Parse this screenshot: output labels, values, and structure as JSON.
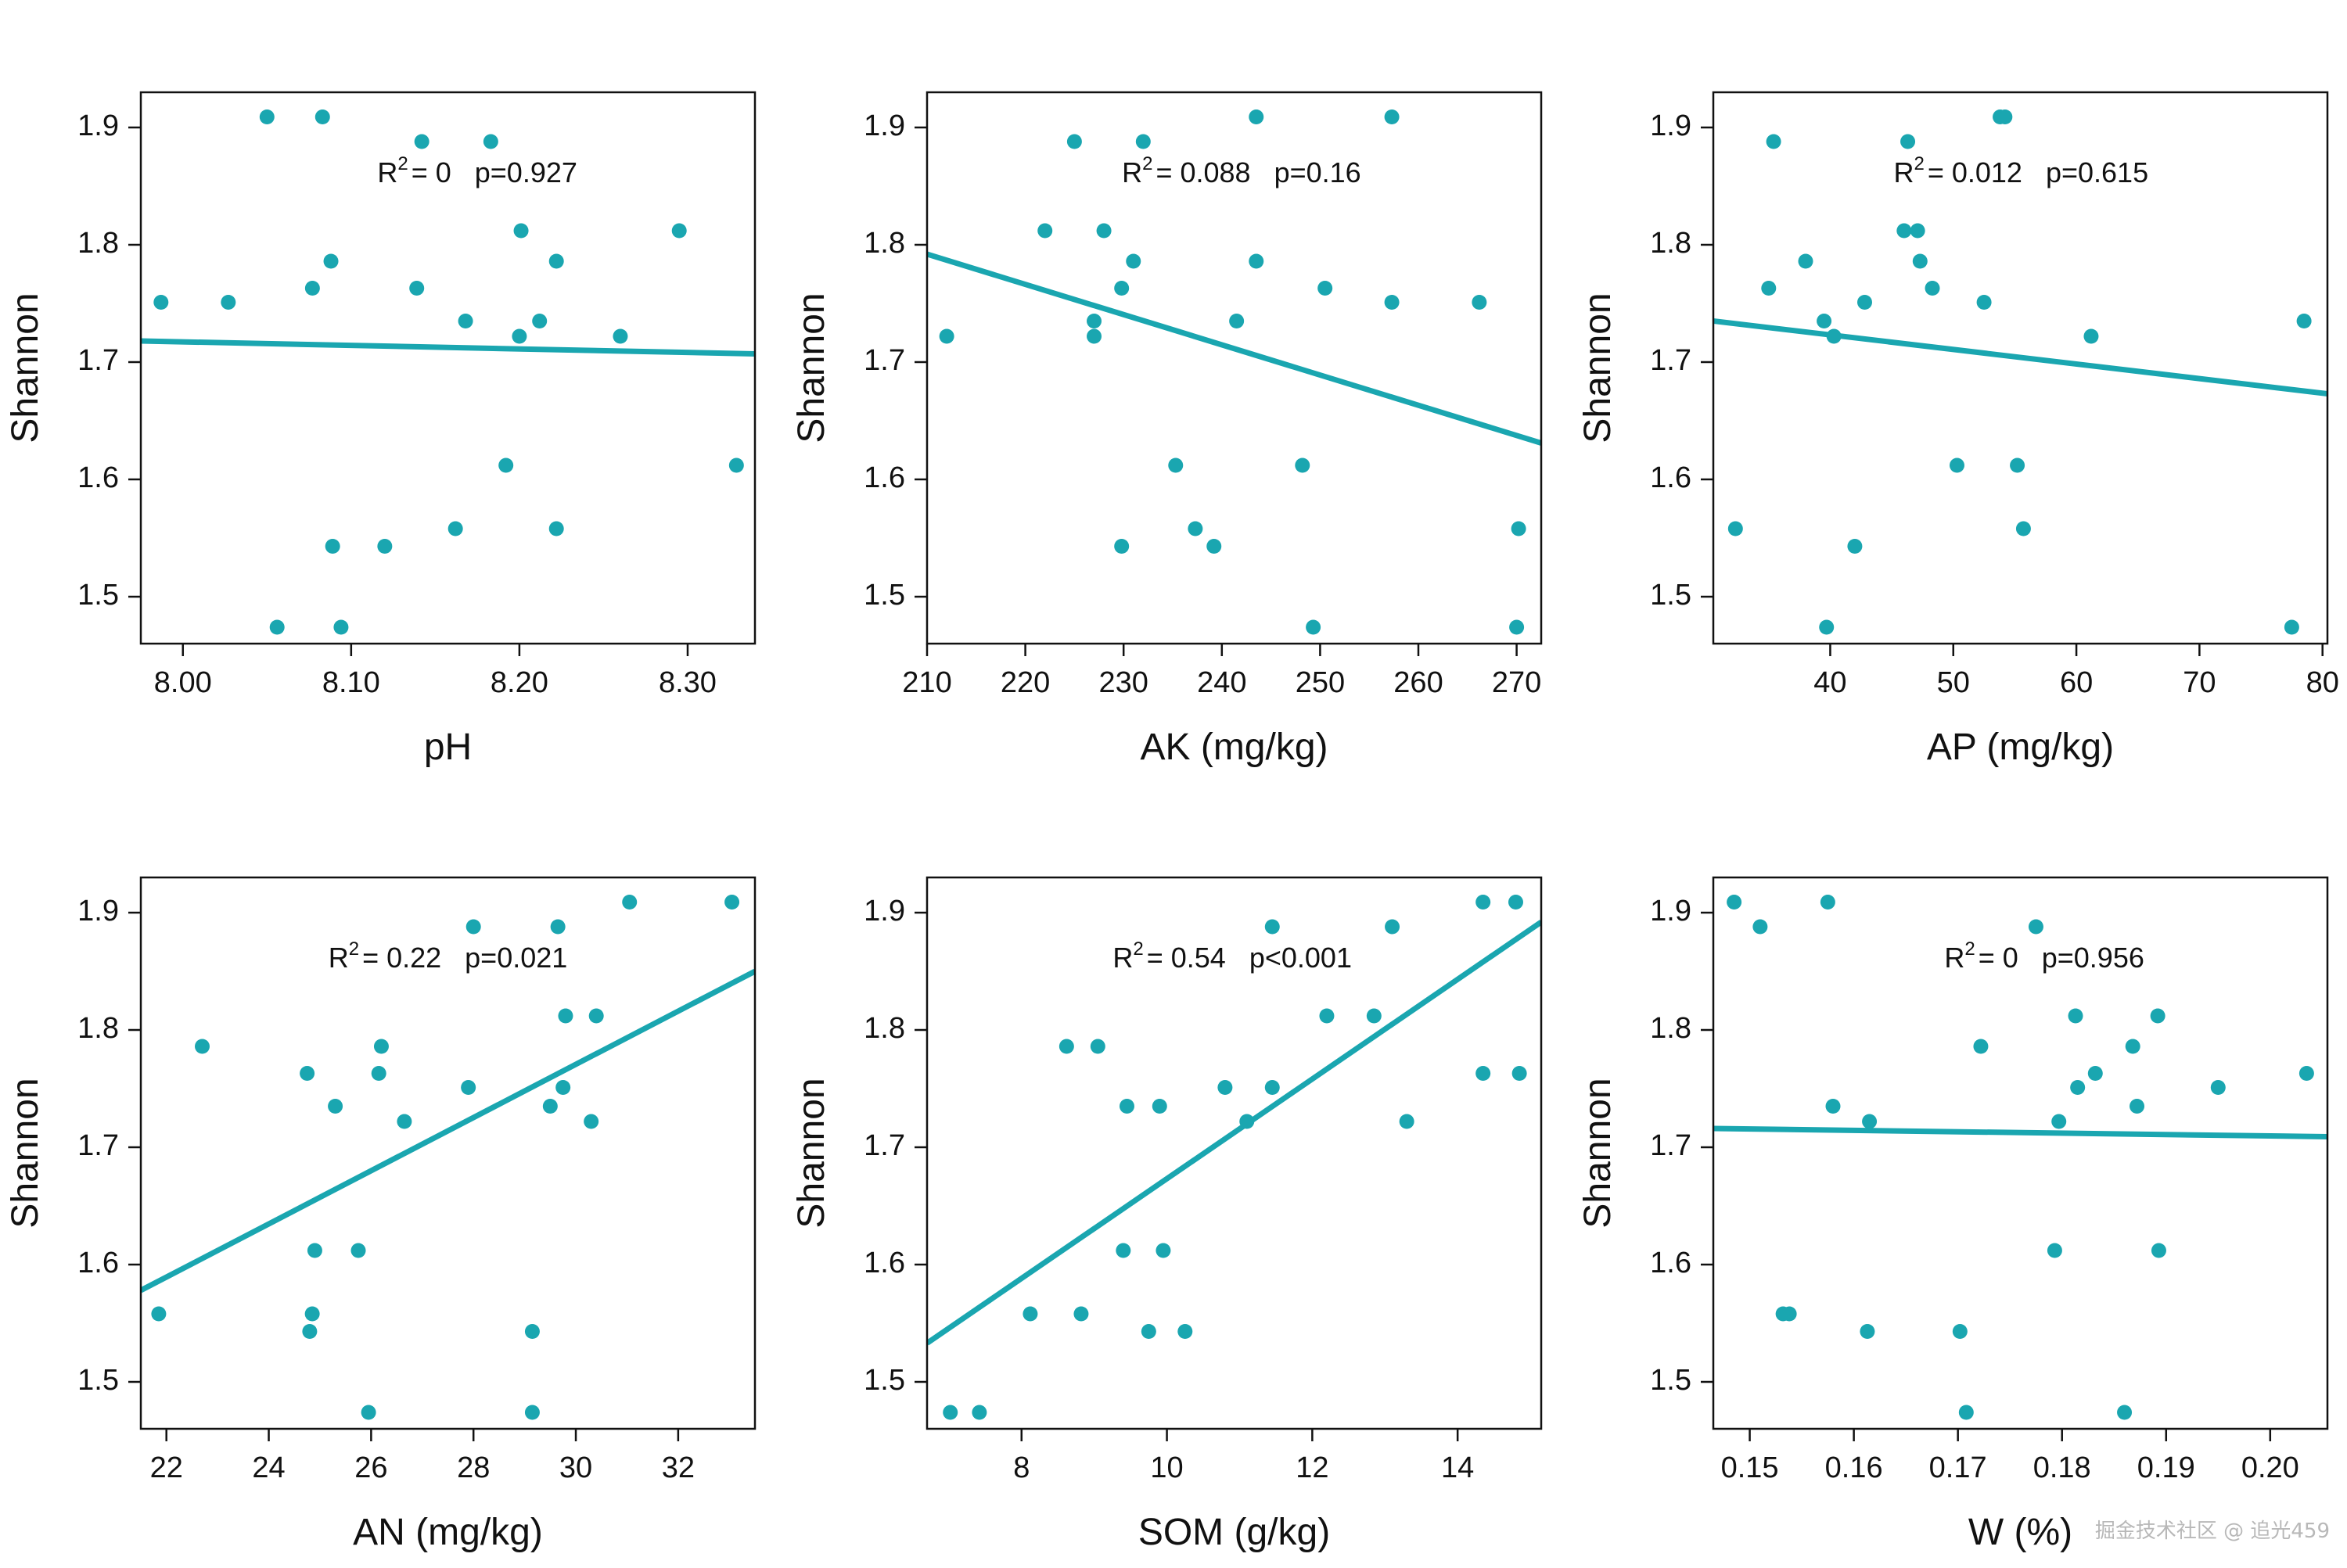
{
  "colors": {
    "accent": "#1aa6b0",
    "axis": "#111111"
  },
  "watermark": "掘金技术社区 @ 追光459",
  "chart_data": [
    {
      "type": "scatter",
      "xlabel": "pH",
      "ylabel": "Shannon",
      "xlim": [
        7.975,
        8.34
      ],
      "ylim": [
        1.46,
        1.93
      ],
      "xticks": [
        8.0,
        8.1,
        8.2,
        8.3
      ],
      "xtick_labels": [
        "8.00",
        "8.10",
        "8.20",
        "8.30"
      ],
      "yticks": [
        1.5,
        1.6,
        1.7,
        1.8,
        1.9
      ],
      "ytick_labels": [
        "1.5",
        "1.6",
        "1.7",
        "1.8",
        "1.9"
      ],
      "annotation": {
        "r2_label": "R",
        "r2_sup": "2",
        "r2_value": "= 0",
        "p_text": "p=0.927",
        "x": 8.175,
        "y": 1.888
      },
      "fit_line": {
        "x": [
          7.975,
          8.34
        ],
        "y": [
          1.718,
          1.707
        ]
      },
      "points": {
        "x": [
          7.987,
          8.05,
          8.083,
          8.142,
          8.183,
          8.027,
          8.077,
          8.088,
          8.139,
          8.168,
          8.201,
          8.222,
          8.295,
          8.2,
          8.212,
          8.26,
          8.192,
          8.329,
          8.089,
          8.12,
          8.162,
          8.222,
          8.056,
          8.094
        ],
        "y": [
          1.751,
          1.909,
          1.909,
          1.888,
          1.888,
          1.751,
          1.763,
          1.786,
          1.763,
          1.735,
          1.812,
          1.786,
          1.812,
          1.722,
          1.735,
          1.722,
          1.612,
          1.612,
          1.543,
          1.543,
          1.558,
          1.558,
          1.474,
          1.474
        ]
      }
    },
    {
      "type": "scatter",
      "xlabel": "AK (mg/kg)",
      "ylabel": "Shannon",
      "xlim": [
        210,
        272.5
      ],
      "ylim": [
        1.46,
        1.93
      ],
      "xticks": [
        210,
        220,
        230,
        240,
        250,
        260,
        270
      ],
      "xtick_labels": [
        "210",
        "220",
        "230",
        "240",
        "250",
        "260",
        "270"
      ],
      "yticks": [
        1.5,
        1.6,
        1.7,
        1.8,
        1.9
      ],
      "ytick_labels": [
        "1.5",
        "1.6",
        "1.7",
        "1.8",
        "1.9"
      ],
      "annotation": {
        "r2_label": "R",
        "r2_sup": "2",
        "r2_value": "= 0.088",
        "p_text": "p=0.16",
        "x": 242,
        "y": 1.888
      },
      "fit_line": {
        "x": [
          210,
          272.5
        ],
        "y": [
          1.792,
          1.631
        ]
      },
      "points": {
        "x": [
          212,
          222,
          225,
          228,
          229.8,
          231,
          232,
          227,
          227,
          241.5,
          243.5,
          243.5,
          250.5,
          257.3,
          257.3,
          266.2,
          235.3,
          237.3,
          239.2,
          248.2,
          229.8,
          249.3,
          270.2,
          270
        ],
        "y": [
          1.722,
          1.812,
          1.888,
          1.812,
          1.763,
          1.786,
          1.888,
          1.735,
          1.722,
          1.735,
          1.786,
          1.909,
          1.763,
          1.751,
          1.909,
          1.751,
          1.612,
          1.558,
          1.543,
          1.612,
          1.543,
          1.474,
          1.558,
          1.474
        ]
      }
    },
    {
      "type": "scatter",
      "xlabel": "AP (mg/kg)",
      "ylabel": "Shannon",
      "xlim": [
        30.5,
        80.4
      ],
      "ylim": [
        1.46,
        1.93
      ],
      "xticks": [
        40,
        50,
        60,
        70,
        80
      ],
      "xtick_labels": [
        "40",
        "50",
        "60",
        "70",
        "80"
      ],
      "yticks": [
        1.5,
        1.6,
        1.7,
        1.8,
        1.9
      ],
      "ytick_labels": [
        "1.5",
        "1.6",
        "1.7",
        "1.8",
        "1.9"
      ],
      "annotation": {
        "r2_label": "R",
        "r2_sup": "2",
        "r2_value": "= 0.012",
        "p_text": "p=0.615",
        "x": 55.5,
        "y": 1.888
      },
      "fit_line": {
        "x": [
          30.5,
          80.4
        ],
        "y": [
          1.735,
          1.673
        ]
      },
      "points": {
        "x": [
          32.3,
          35,
          35.4,
          38,
          39.5,
          40.3,
          42.8,
          46,
          46.3,
          47.1,
          47.3,
          48.3,
          52.5,
          53.8,
          54.2,
          61.2,
          78.5,
          50.3,
          55.2,
          55.7,
          42,
          39.7,
          77.5
        ],
        "y": [
          1.558,
          1.763,
          1.888,
          1.786,
          1.735,
          1.722,
          1.751,
          1.812,
          1.888,
          1.812,
          1.786,
          1.763,
          1.751,
          1.909,
          1.909,
          1.722,
          1.735,
          1.612,
          1.612,
          1.558,
          1.543,
          1.474,
          1.474
        ]
      }
    },
    {
      "type": "scatter",
      "xlabel": "AN (mg/kg)",
      "ylabel": "Shannon",
      "xlim": [
        21.5,
        33.5
      ],
      "ylim": [
        1.46,
        1.93
      ],
      "xticks": [
        22,
        24,
        26,
        28,
        30,
        32
      ],
      "xtick_labels": [
        "22",
        "24",
        "26",
        "28",
        "30",
        "32"
      ],
      "yticks": [
        1.5,
        1.6,
        1.7,
        1.8,
        1.9
      ],
      "ytick_labels": [
        "1.5",
        "1.6",
        "1.7",
        "1.8",
        "1.9"
      ],
      "annotation": {
        "r2_label": "R",
        "r2_sup": "2",
        "r2_value": "= 0.22",
        "p_text": "p=0.021",
        "x": 27.5,
        "y": 1.888
      },
      "fit_line": {
        "x": [
          21.5,
          33.5
        ],
        "y": [
          1.578,
          1.85
        ]
      },
      "points": {
        "x": [
          21.85,
          22.7,
          24.75,
          25.3,
          26.15,
          26.2,
          26.65,
          27.9,
          28,
          29.5,
          29.65,
          29.75,
          29.8,
          30.3,
          30.4,
          31.05,
          33.05,
          24.9,
          25.75,
          24.85,
          24.8,
          29.15,
          25.95,
          29.15
        ],
        "y": [
          1.558,
          1.786,
          1.763,
          1.735,
          1.763,
          1.786,
          1.722,
          1.751,
          1.888,
          1.735,
          1.888,
          1.751,
          1.812,
          1.722,
          1.812,
          1.909,
          1.909,
          1.612,
          1.612,
          1.558,
          1.543,
          1.543,
          1.474,
          1.474
        ]
      }
    },
    {
      "type": "scatter",
      "xlabel": "SOM (g/kg)",
      "ylabel": "Shannon",
      "xlim": [
        6.7,
        15.15
      ],
      "ylim": [
        1.46,
        1.93
      ],
      "xticks": [
        8,
        10,
        12,
        14
      ],
      "xtick_labels": [
        "8",
        "10",
        "12",
        "14"
      ],
      "yticks": [
        1.5,
        1.6,
        1.7,
        1.8,
        1.9
      ],
      "ytick_labels": [
        "1.5",
        "1.6",
        "1.7",
        "1.8",
        "1.9"
      ],
      "annotation": {
        "r2_label": "R",
        "r2_sup": "2",
        "r2_value": "= 0.54",
        "p_text": "p<0.001",
        "x": 10.9,
        "y": 1.888
      },
      "fit_line": {
        "x": [
          6.7,
          15.15
        ],
        "y": [
          1.533,
          1.892
        ]
      },
      "points": {
        "x": [
          7.02,
          7.42,
          8.12,
          8.62,
          8.82,
          9.05,
          9.4,
          9.45,
          9.75,
          9.9,
          9.95,
          10.25,
          10.8,
          11.1,
          11.45,
          11.45,
          12.2,
          12.85,
          13.1,
          13.3,
          14.35,
          14.35,
          14.8,
          14.85
        ],
        "y": [
          1.474,
          1.474,
          1.558,
          1.786,
          1.558,
          1.786,
          1.612,
          1.735,
          1.543,
          1.735,
          1.612,
          1.543,
          1.751,
          1.722,
          1.751,
          1.888,
          1.812,
          1.812,
          1.888,
          1.722,
          1.909,
          1.763,
          1.909,
          1.763
        ]
      }
    },
    {
      "type": "scatter",
      "xlabel": "W (%)",
      "ylabel": "Shannon",
      "xlim": [
        0.1465,
        0.2055
      ],
      "ylim": [
        1.46,
        1.93
      ],
      "xticks": [
        0.15,
        0.16,
        0.17,
        0.18,
        0.19,
        0.2
      ],
      "xtick_labels": [
        "0.15",
        "0.16",
        "0.17",
        "0.18",
        "0.19",
        "0.20"
      ],
      "yticks": [
        1.5,
        1.6,
        1.7,
        1.8,
        1.9
      ],
      "ytick_labels": [
        "1.5",
        "1.6",
        "1.7",
        "1.8",
        "1.9"
      ],
      "annotation": {
        "r2_label": "R",
        "r2_sup": "2",
        "r2_value": "= 0",
        "p_text": "p=0.956",
        "x": 0.1783,
        "y": 1.888
      },
      "fit_line": {
        "x": [
          0.1465,
          0.2055
        ],
        "y": [
          1.716,
          1.709
        ]
      },
      "points": {
        "x": [
          0.1485,
          0.151,
          0.1575,
          0.1775,
          0.1532,
          0.1538,
          0.158,
          0.1615,
          0.1613,
          0.1702,
          0.1722,
          0.1708,
          0.1797,
          0.1793,
          0.1813,
          0.1815,
          0.1832,
          0.1868,
          0.1872,
          0.1892,
          0.1893,
          0.186,
          0.195,
          0.2035
        ],
        "y": [
          1.909,
          1.888,
          1.909,
          1.888,
          1.558,
          1.558,
          1.735,
          1.722,
          1.543,
          1.543,
          1.786,
          1.474,
          1.722,
          1.612,
          1.812,
          1.751,
          1.763,
          1.786,
          1.735,
          1.812,
          1.612,
          1.474,
          1.751,
          1.763
        ]
      }
    }
  ]
}
